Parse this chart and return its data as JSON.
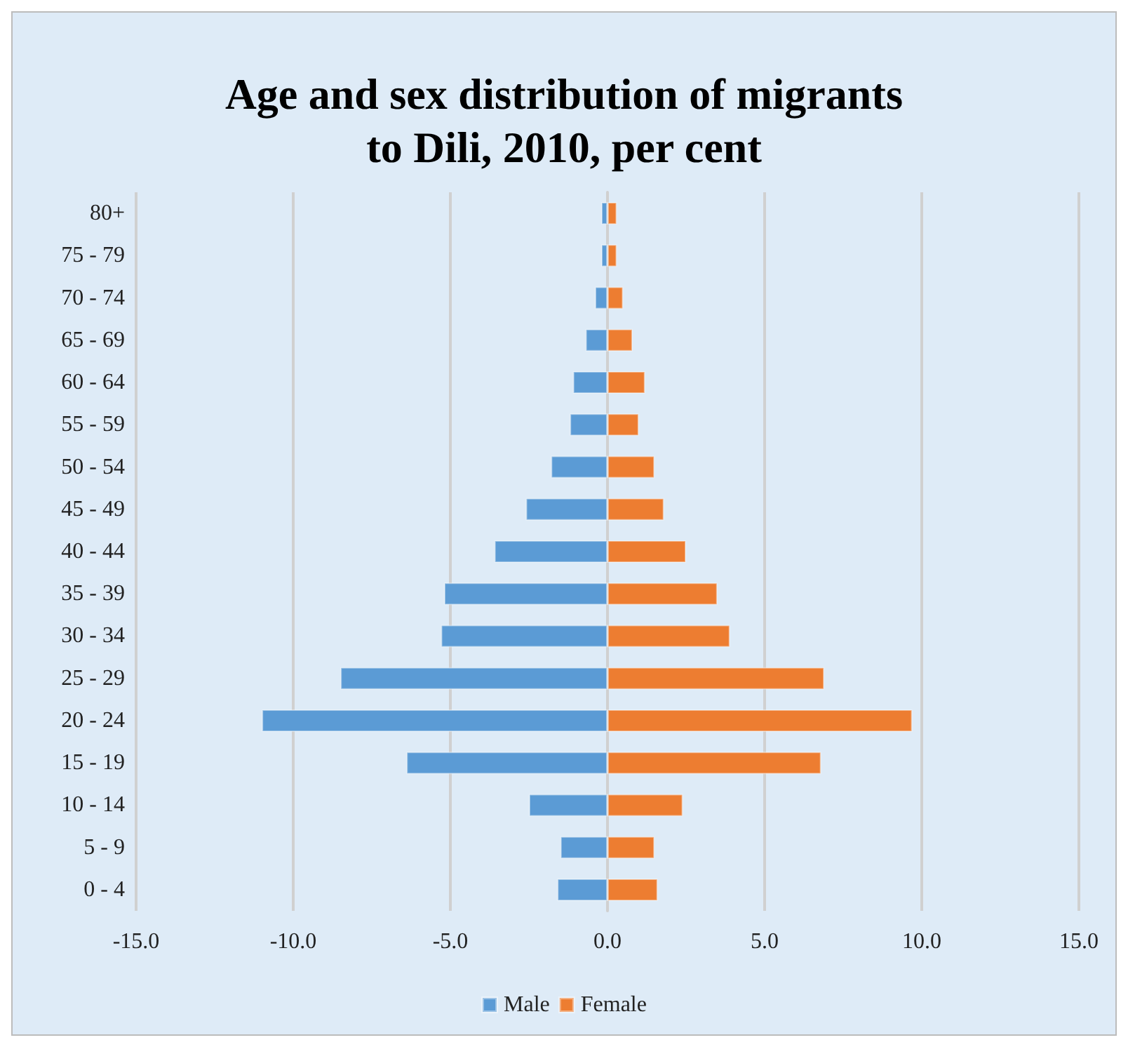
{
  "chart_data": {
    "type": "bar",
    "orientation": "horizontal",
    "title": "Age and sex distribution of migrants\nto Dili, 2010, per cent",
    "categories": [
      "80+",
      "75 - 79",
      "70 - 74",
      "65 - 69",
      "60 - 64",
      "55 - 59",
      "50 - 54",
      "45 - 49",
      "40 - 44",
      "35 - 39",
      "30 - 34",
      "25 - 29",
      "20 - 24",
      "15 - 19",
      "10 - 14",
      "5 - 9",
      "0 - 4"
    ],
    "series": [
      {
        "name": "Male",
        "color": "#5b9bd5",
        "values": [
          -0.2,
          -0.2,
          -0.4,
          -0.7,
          -1.1,
          -1.2,
          -1.8,
          -2.6,
          -3.6,
          -5.2,
          -5.3,
          -8.5,
          -11.0,
          -6.4,
          -2.5,
          -1.5,
          -1.6
        ]
      },
      {
        "name": "Female",
        "color": "#ed7d31",
        "values": [
          0.3,
          0.3,
          0.5,
          0.8,
          1.2,
          1.0,
          1.5,
          1.8,
          2.5,
          3.5,
          3.9,
          6.9,
          9.7,
          6.8,
          2.4,
          1.5,
          1.6
        ]
      }
    ],
    "xlim": [
      -15,
      15
    ],
    "xticks": [
      {
        "value": -15,
        "label": "-15.0"
      },
      {
        "value": -10,
        "label": "-10.0"
      },
      {
        "value": -5,
        "label": "-5.0"
      },
      {
        "value": 0,
        "label": "0.0"
      },
      {
        "value": 5,
        "label": "5.0"
      },
      {
        "value": 10,
        "label": "10.0"
      },
      {
        "value": 15,
        "label": "15.0"
      }
    ],
    "stacked": true,
    "grid": "x",
    "legend": "bottom"
  }
}
